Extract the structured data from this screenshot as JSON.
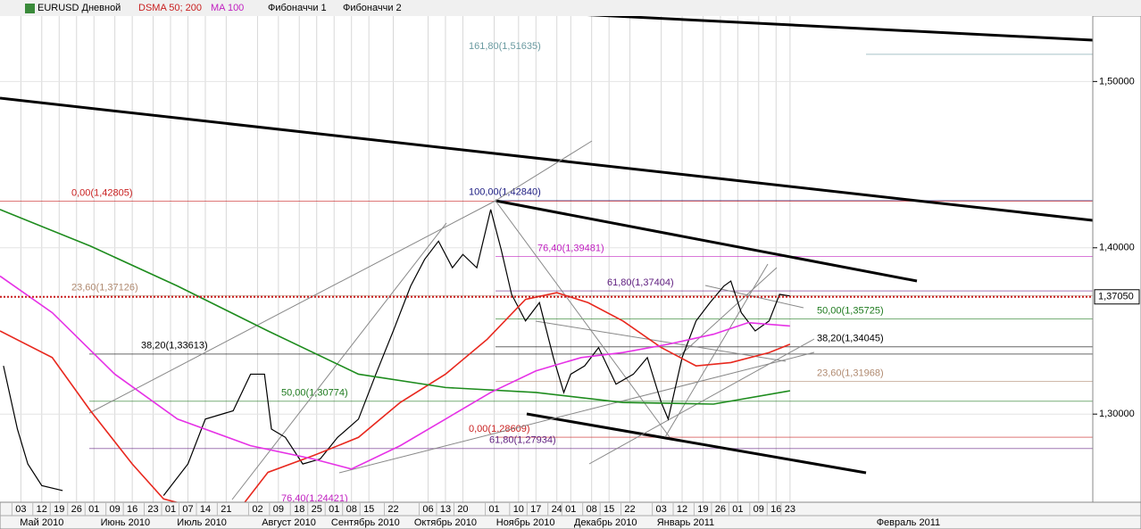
{
  "toolbar": [
    "EURUSD Дневной",
    "DSMA 50; 200",
    "MA 100",
    "Фибоначчи 1",
    "Фибоначчи 2"
  ],
  "chart_data": {
    "type": "line",
    "ylim": [
      1.247,
      1.549
    ],
    "yticks": [
      {
        "value": 1.3,
        "label": "1,30000"
      },
      {
        "value": 1.4,
        "label": "1,40000"
      },
      {
        "value": 1.5,
        "label": "1,50000"
      }
    ],
    "xlim": [
      0,
      314
    ],
    "xticks": [
      {
        "value": 6,
        "label": "03"
      },
      {
        "value": 12,
        "label": "12"
      },
      {
        "value": 17,
        "label": "19"
      },
      {
        "value": 22,
        "label": "26"
      },
      {
        "value": 27,
        "label": "01"
      },
      {
        "value": 33,
        "label": "09"
      },
      {
        "value": 38,
        "label": "16"
      },
      {
        "value": 44,
        "label": "23"
      },
      {
        "value": 49,
        "label": "01"
      },
      {
        "value": 54,
        "label": "07"
      },
      {
        "value": 59,
        "label": "14"
      },
      {
        "value": 65,
        "label": "21"
      },
      {
        "value": 74,
        "label": "02"
      },
      {
        "value": 80,
        "label": "09"
      },
      {
        "value": 86,
        "label": "18"
      },
      {
        "value": 91,
        "label": "25"
      },
      {
        "value": 96,
        "label": "01"
      },
      {
        "value": 101,
        "label": "08"
      },
      {
        "value": 106,
        "label": "15"
      },
      {
        "value": 113,
        "label": "22"
      },
      {
        "value": 123,
        "label": "06"
      },
      {
        "value": 128,
        "label": "13"
      },
      {
        "value": 133,
        "label": "20"
      },
      {
        "value": 142,
        "label": "01"
      },
      {
        "value": 149,
        "label": "10"
      },
      {
        "value": 154,
        "label": "17"
      },
      {
        "value": 160,
        "label": "24"
      },
      {
        "value": 164,
        "label": "01"
      },
      {
        "value": 170,
        "label": "08"
      },
      {
        "value": 175,
        "label": "15"
      },
      {
        "value": 181,
        "label": "22"
      },
      {
        "value": 190,
        "label": "03"
      },
      {
        "value": 196,
        "label": "12"
      },
      {
        "value": 202,
        "label": "19"
      },
      {
        "value": 207,
        "label": "26"
      },
      {
        "value": 212,
        "label": "01"
      },
      {
        "value": 218,
        "label": "09"
      },
      {
        "value": 223,
        "label": "16"
      },
      {
        "value": 227,
        "label": "23"
      }
    ],
    "months": [
      {
        "value": 12,
        "label": "Май 2010"
      },
      {
        "value": 36,
        "label": "Июнь 2010"
      },
      {
        "value": 58,
        "label": "Июль 2010"
      },
      {
        "value": 83,
        "label": "Август 2010"
      },
      {
        "value": 105,
        "label": "Сентябрь 2010"
      },
      {
        "value": 128,
        "label": "Октябрь 2010"
      },
      {
        "value": 151,
        "label": "Ноябрь 2010"
      },
      {
        "value": 174,
        "label": "Декабрь 2010"
      },
      {
        "value": 197,
        "label": "Январь 2011"
      },
      {
        "value": 261,
        "label": "Февраль 2011"
      }
    ],
    "grid": true,
    "series": [
      {
        "color": "#000000",
        "x": [
          1,
          5,
          8,
          12,
          18,
          24,
          47,
          54,
          59,
          67,
          72,
          76,
          78,
          82,
          87,
          92,
          97,
          103,
          108,
          113,
          118,
          122,
          126,
          130,
          133,
          137,
          141,
          144,
          147,
          151,
          155,
          159,
          162,
          164,
          168,
          172,
          177,
          182,
          186,
          190,
          192,
          196,
          200,
          204,
          208,
          210,
          213,
          217,
          221,
          224,
          227
        ],
        "values": [
          1.329,
          1.291,
          1.27,
          1.257,
          1.254,
          null,
          1.251,
          1.27,
          1.297,
          1.302,
          1.324,
          1.324,
          1.291,
          1.286,
          1.27,
          1.273,
          1.286,
          1.297,
          1.324,
          1.35,
          1.377,
          1.393,
          1.404,
          1.388,
          1.396,
          1.388,
          1.423,
          1.399,
          1.372,
          1.356,
          1.367,
          1.334,
          1.313,
          1.324,
          1.329,
          1.34,
          1.318,
          1.324,
          1.334,
          1.307,
          1.297,
          1.334,
          1.356,
          1.367,
          1.377,
          1.38,
          1.361,
          1.35,
          1.356,
          1.372,
          1.371
        ]
      },
      {
        "color": "#e8281e",
        "x": [
          0,
          15,
          26,
          38,
          47,
          67,
          77,
          90,
          103,
          115,
          128,
          140,
          151,
          160,
          169,
          179,
          190,
          200,
          210,
          221,
          227
        ],
        "values": [
          1.35,
          1.334,
          1.302,
          1.27,
          1.249,
          1.238,
          1.265,
          1.275,
          1.286,
          1.307,
          1.324,
          1.345,
          1.369,
          1.373,
          1.367,
          1.356,
          1.34,
          1.329,
          1.331,
          1.337,
          1.342
        ]
      },
      {
        "color": "#1e8c1e",
        "x": [
          0,
          26,
          51,
          77,
          103,
          128,
          154,
          179,
          205,
          227
        ],
        "values": [
          1.423,
          1.401,
          1.377,
          1.35,
          1.324,
          1.316,
          1.313,
          1.307,
          1.306,
          1.314
        ]
      },
      {
        "color": "#e632e6",
        "x": [
          0,
          15,
          33,
          51,
          72,
          90,
          101,
          115,
          128,
          141,
          154,
          167,
          179,
          192,
          205,
          215,
          227
        ],
        "values": [
          1.383,
          1.361,
          1.324,
          1.297,
          1.281,
          1.273,
          1.267,
          1.281,
          1.297,
          1.313,
          1.326,
          1.334,
          1.337,
          1.342,
          1.348,
          1.355,
          1.353
        ]
      }
    ],
    "fib_levels": [
      {
        "label": "161,80(1,51635)",
        "value": 1.51635,
        "color": "#6a9aa0"
      },
      {
        "label": "100,00(1,42840)",
        "value": 1.4284,
        "color": "#1a1a80"
      },
      {
        "label": "76,40(1,39481)",
        "value": 1.39481,
        "color": "#c020c0"
      },
      {
        "label": "61,80(1,37404)",
        "value": 1.37404,
        "color": "#602080"
      },
      {
        "label": "50,00(1,35725)",
        "value": 1.35725,
        "color": "#1e7a1e"
      },
      {
        "label": "38,20(1,34045)",
        "value": 1.34045,
        "color": "#000000"
      },
      {
        "label": "23,60(1,31968)",
        "value": 1.31968,
        "color": "#b08a70"
      },
      {
        "label": "0,00(1,28609)",
        "value": 1.28609,
        "color": "#c81e1e"
      },
      {
        "label": "0,00(1,42805)",
        "value": 1.42805,
        "color": "#c81e1e"
      },
      {
        "label": "23,60(1,37126)",
        "value": 1.37126,
        "color": "#b08a70"
      },
      {
        "label": "38,20(1,33613)",
        "value": 1.33613,
        "color": "#000000"
      },
      {
        "label": "50,00(1,30774)",
        "value": 1.30774,
        "color": "#1e7a1e"
      },
      {
        "label": "61,80(1,27934)",
        "value": 1.27934,
        "color": "#602080"
      },
      {
        "label": "76,40(1,24421)",
        "value": 1.24421,
        "color": "#c020c0"
      }
    ],
    "last_price": {
      "value": 1.3705,
      "label": "1,37050",
      "color": "#c81e1e"
    }
  }
}
